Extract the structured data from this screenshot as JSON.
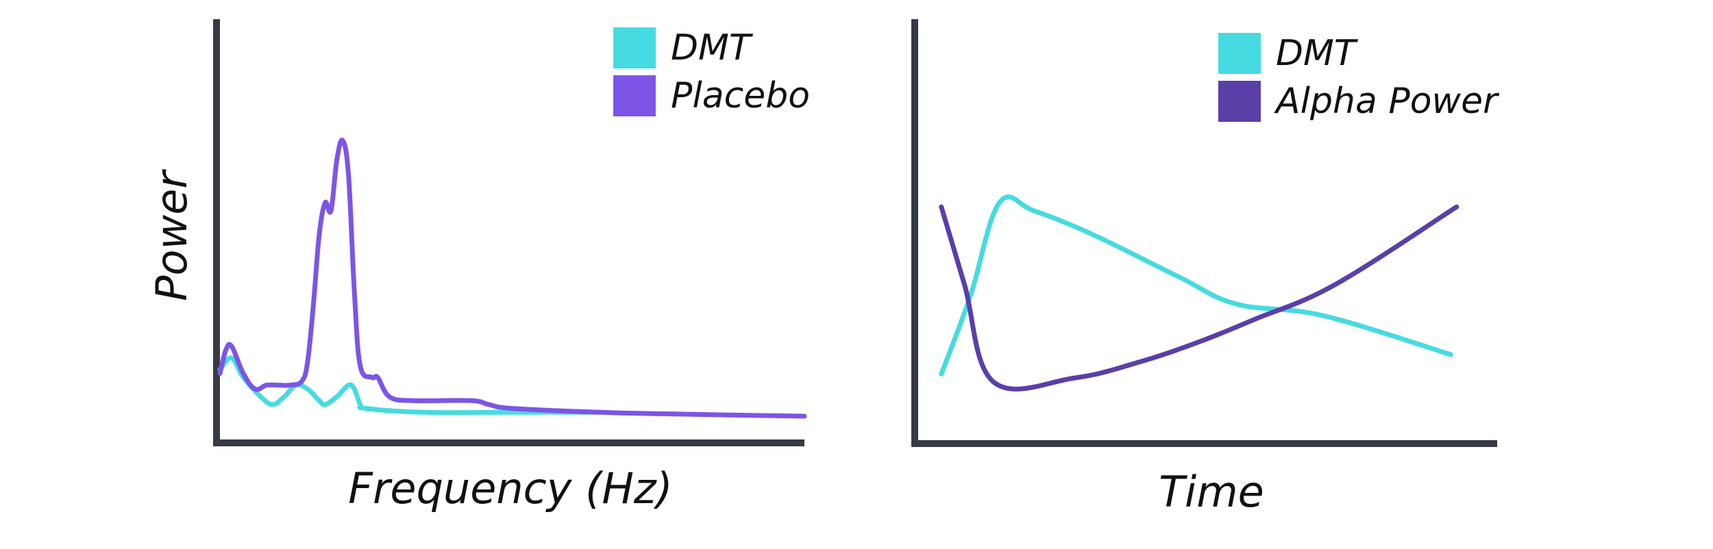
{
  "colors": {
    "axis": "#353a45",
    "dmt": "#46dbe0",
    "placebo": "#7d55e6",
    "alpha_power": "#5a3fa8"
  },
  "chart_data": [
    {
      "type": "line",
      "xlabel": "Frequency (Hz)",
      "ylabel": "Power",
      "grid": false,
      "ticks": false,
      "legend": {
        "placement": "top-right",
        "entries": [
          {
            "label": "DMT",
            "color": "#46dbe0"
          },
          {
            "label": "Placebo",
            "color": "#7d55e6"
          }
        ]
      },
      "xlim": [
        0,
        100
      ],
      "ylim": [
        0,
        100
      ],
      "series": [
        {
          "name": "DMT",
          "color": "#46dbe0",
          "points": [
            [
              0,
              18
            ],
            [
              2,
              21
            ],
            [
              4,
              16
            ],
            [
              7,
              11
            ],
            [
              9,
              9
            ],
            [
              11,
              11
            ],
            [
              13,
              14
            ],
            [
              15,
              13
            ],
            [
              17,
              10
            ],
            [
              18,
              9
            ],
            [
              20,
              11
            ],
            [
              22,
              14
            ],
            [
              23,
              13
            ],
            [
              24,
              9
            ],
            [
              25,
              8
            ],
            [
              35,
              7
            ],
            [
              50,
              7
            ],
            [
              65,
              7
            ]
          ]
        },
        {
          "name": "Placebo",
          "color": "#7d55e6",
          "points": [
            [
              0,
              17
            ],
            [
              1,
              23
            ],
            [
              2,
              24
            ],
            [
              4,
              17
            ],
            [
              6,
              13
            ],
            [
              8,
              14
            ],
            [
              10,
              14
            ],
            [
              12,
              14
            ],
            [
              14,
              15
            ],
            [
              15,
              20
            ],
            [
              16,
              35
            ],
            [
              17,
              53
            ],
            [
              18,
              61
            ],
            [
              19,
              59
            ],
            [
              20,
              72
            ],
            [
              21,
              77
            ],
            [
              22,
              68
            ],
            [
              23,
              38
            ],
            [
              24,
              19
            ],
            [
              26,
              16
            ],
            [
              27,
              16
            ],
            [
              29,
              11
            ],
            [
              33,
              10
            ],
            [
              43,
              10
            ],
            [
              46,
              9
            ],
            [
              50,
              8
            ],
            [
              65,
              7
            ],
            [
              80,
              6.5
            ],
            [
              100,
              6
            ]
          ]
        }
      ]
    },
    {
      "type": "line",
      "xlabel": "Time",
      "ylabel": "",
      "grid": false,
      "ticks": false,
      "legend": {
        "placement": "top-right",
        "entries": [
          {
            "label": "DMT",
            "color": "#46dbe0"
          },
          {
            "label": "Alpha Power",
            "color": "#5a3fa8"
          }
        ]
      },
      "xlim": [
        0,
        100
      ],
      "ylim": [
        0,
        100
      ],
      "series": [
        {
          "name": "DMT",
          "color": "#46dbe0",
          "points": [
            [
              4,
              17
            ],
            [
              9,
              37
            ],
            [
              14,
              61
            ],
            [
              20,
              59
            ],
            [
              30,
              53
            ],
            [
              45,
              42
            ],
            [
              55,
              35
            ],
            [
              70,
              32
            ],
            [
              92,
              22
            ]
          ]
        },
        {
          "name": "Alpha Power",
          "color": "#5a3fa8",
          "points": [
            [
              4,
              60
            ],
            [
              8,
              40
            ],
            [
              13,
              15
            ],
            [
              27,
              16
            ],
            [
              38,
              20
            ],
            [
              48,
              25
            ],
            [
              58,
              31
            ],
            [
              72,
              40
            ],
            [
              93,
              60
            ]
          ]
        }
      ]
    }
  ]
}
